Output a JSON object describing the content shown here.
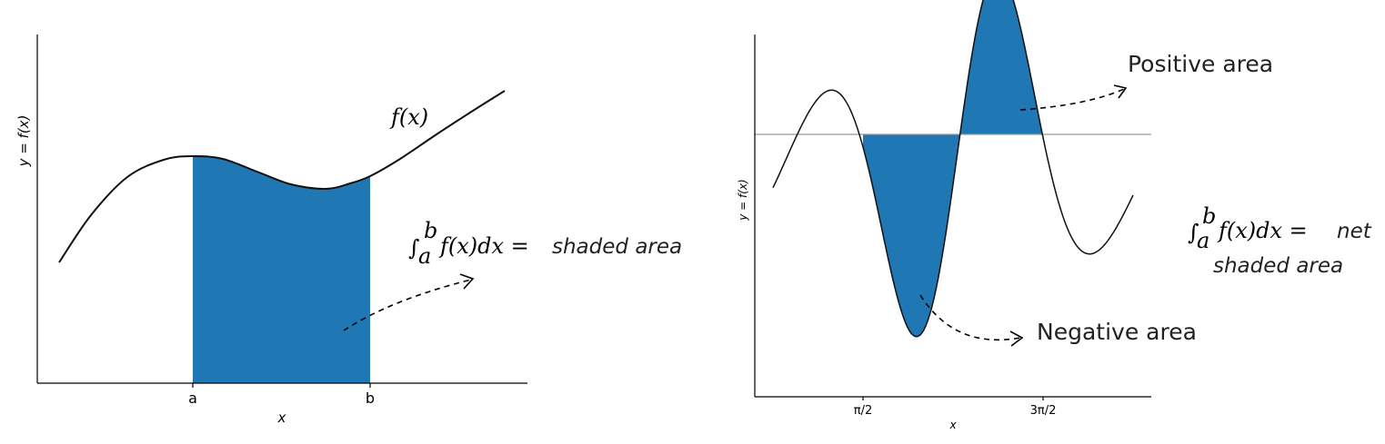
{
  "left_panel": {
    "x_label": "x",
    "y_label": "y = f(x)",
    "tick_a": "a",
    "tick_b": "b",
    "curve_label": "f(x)",
    "integral_lower": "a",
    "integral_upper": "b",
    "integral_expr": "f(x)dx =",
    "annotation": "shaded area",
    "fill_color": "#1f77b4"
  },
  "right_panel": {
    "x_label": "x",
    "y_label": "y = f(x)",
    "tick_1": "π/2",
    "tick_2": "3π/2",
    "positive_label": "Positive area",
    "negative_label": "Negative area",
    "fill_color": "#1f77b4"
  },
  "right_note": {
    "integral_lower": "a",
    "integral_upper": "b",
    "integral_expr": "f(x)dx =",
    "line1_word": "net",
    "line2": "shaded area"
  }
}
